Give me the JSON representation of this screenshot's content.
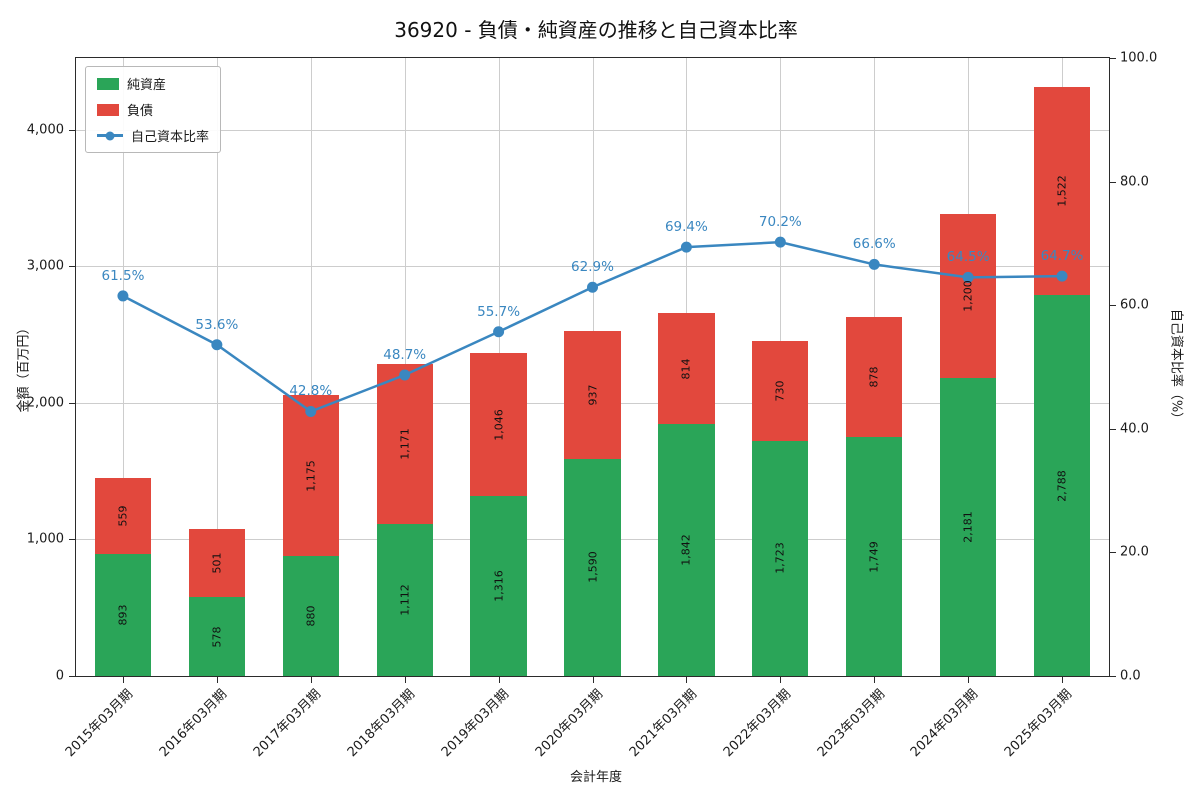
{
  "chart_data": {
    "type": "bar",
    "stacked": true,
    "title": "36920 - 負債・純資産の推移と自己資本比率",
    "xlabel": "会計年度",
    "ylabel_left": "金額（百万円）",
    "ylabel_right": "自己資本比率（%）",
    "grid": true,
    "legend_position": "upper-left",
    "ylim_left": [
      0,
      4526
    ],
    "ylim_right": [
      0,
      100
    ],
    "yticks_left": [
      "0",
      "1,000",
      "2,000",
      "3,000",
      "4,000"
    ],
    "yticks_left_values": [
      0,
      1000,
      2000,
      3000,
      4000
    ],
    "yticks_right": [
      "0.0",
      "20.0",
      "40.0",
      "60.0",
      "80.0",
      "100.0"
    ],
    "yticks_right_values": [
      0,
      20,
      40,
      60,
      80,
      100
    ],
    "categories": [
      "2015年03月期",
      "2016年03月期",
      "2017年03月期",
      "2018年03月期",
      "2019年03月期",
      "2020年03月期",
      "2021年03月期",
      "2022年03月期",
      "2023年03月期",
      "2024年03月期",
      "2025年03月期"
    ],
    "series": [
      {
        "name": "純資産",
        "type": "bar",
        "color": "#2aa558",
        "values": [
          893,
          578,
          880,
          1112,
          1316,
          1590,
          1842,
          1723,
          1749,
          2181,
          2788
        ],
        "labels": [
          "893",
          "578",
          "880",
          "1,112",
          "1,316",
          "1,590",
          "1,842",
          "1,723",
          "1,749",
          "2,181",
          "2,788"
        ]
      },
      {
        "name": "負債",
        "type": "bar",
        "color": "#e2483d",
        "values": [
          559,
          501,
          1175,
          1171,
          1046,
          937,
          814,
          730,
          878,
          1200,
          1522
        ],
        "labels": [
          "559",
          "501",
          "1,175",
          "1,171",
          "1,046",
          "937",
          "814",
          "730",
          "878",
          "1,200",
          "1,522"
        ]
      },
      {
        "name": "自己資本比率",
        "type": "line",
        "axis": "right",
        "color": "#3a87c0",
        "values": [
          61.5,
          53.6,
          42.8,
          48.7,
          55.7,
          62.9,
          69.4,
          70.2,
          66.6,
          64.5,
          64.7
        ],
        "labels": [
          "61.5%",
          "53.6%",
          "42.8%",
          "48.7%",
          "55.7%",
          "62.9%",
          "69.4%",
          "70.2%",
          "66.6%",
          "64.5%",
          "64.7%"
        ]
      }
    ]
  }
}
